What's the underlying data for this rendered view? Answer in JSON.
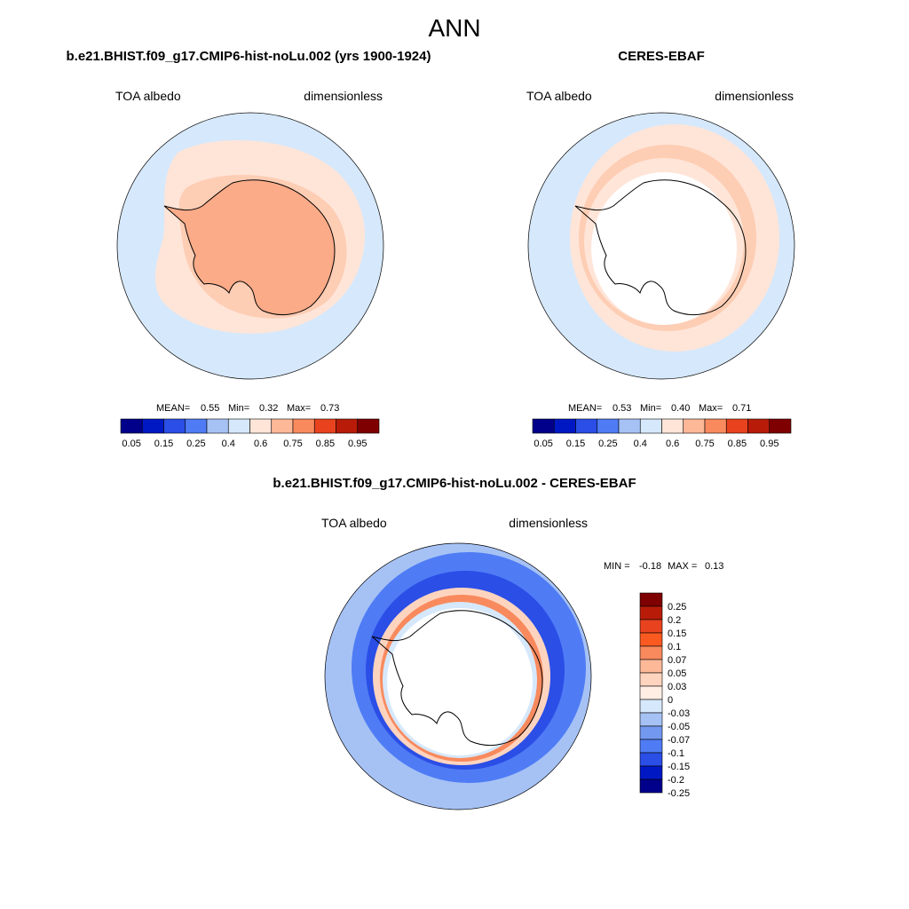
{
  "title": "ANN",
  "colors": {
    "scale_11": [
      "#00008b",
      "#0018c4",
      "#2a4ee6",
      "#4f7cf5",
      "#a6c2f5",
      "#d6e8fb",
      "#ffe5d8",
      "#fdb898",
      "#f88a5e",
      "#e8431e",
      "#b81c08",
      "#7f0000"
    ],
    "scale_14": [
      "#7f0000",
      "#b81c08",
      "#e8431e",
      "#fa5a20",
      "#f88a5e",
      "#fdb898",
      "#ffd4bf",
      "#ffeee4",
      "#d6e8fb",
      "#a6c2f5",
      "#7398f0",
      "#4f7cf5",
      "#2a4ee6",
      "#0018c4",
      "#00008b"
    ]
  },
  "chart_data": [
    {
      "type": "heatmap",
      "projection": "south-polar-stereographic",
      "title": "b.e21.BHIST.f09_g17.CMIP6-hist-noLu.002 (yrs 1900-1924)",
      "left_label": "TOA albedo",
      "right_label": "dimensionless",
      "stats": {
        "mean_label": "MEAN=",
        "mean": "0.55",
        "min_label": "Min=",
        "min": "0.32",
        "max_label": "Max=",
        "max": "0.73"
      },
      "colorbar": {
        "orientation": "horizontal",
        "tick_labels": [
          "0.05",
          "0.15",
          "0.25",
          "0.4",
          "0.6",
          "0.75",
          "0.85",
          "0.95"
        ],
        "levels": [
          0.05,
          0.1,
          0.15,
          0.2,
          0.25,
          0.3,
          0.4,
          0.5,
          0.6,
          0.7,
          0.75,
          0.8,
          0.85,
          0.9,
          0.95
        ]
      },
      "zones": [
        {
          "region": "open ocean",
          "value": 0.45
        },
        {
          "region": "sea-ice belt",
          "value": 0.6
        },
        {
          "region": "Antarctic continent",
          "value": 0.7
        }
      ]
    },
    {
      "type": "heatmap",
      "projection": "south-polar-stereographic",
      "title": "CERES-EBAF",
      "left_label": "TOA albedo",
      "right_label": "dimensionless",
      "stats": {
        "mean_label": "MEAN=",
        "mean": "0.53",
        "min_label": "Min=",
        "min": "0.40",
        "max_label": "Max=",
        "max": "0.71"
      },
      "colorbar": {
        "orientation": "horizontal",
        "tick_labels": [
          "0.05",
          "0.15",
          "0.25",
          "0.4",
          "0.6",
          "0.75",
          "0.85",
          "0.95"
        ],
        "levels": [
          0.05,
          0.1,
          0.15,
          0.2,
          0.25,
          0.3,
          0.4,
          0.5,
          0.6,
          0.7,
          0.75,
          0.8,
          0.85,
          0.9,
          0.95
        ]
      },
      "zones": [
        {
          "region": "open ocean",
          "value": 0.45
        },
        {
          "region": "sea-ice belt",
          "value": 0.6
        },
        {
          "region": "Antarctic continent",
          "value": null
        }
      ]
    },
    {
      "type": "heatmap",
      "projection": "south-polar-stereographic",
      "title": "b.e21.BHIST.f09_g17.CMIP6-hist-noLu.002 - CERES-EBAF",
      "left_label": "TOA albedo",
      "right_label": "dimensionless",
      "stats": {
        "min_label": "MIN =",
        "min": "-0.18",
        "max_label": "MAX =",
        "max": "0.13"
      },
      "colorbar": {
        "orientation": "vertical",
        "tick_labels": [
          "0.25",
          "0.2",
          "0.15",
          "0.1",
          "0.07",
          "0.05",
          "0.03",
          "0",
          "-0.03",
          "-0.05",
          "-0.07",
          "-0.1",
          "-0.15",
          "-0.2",
          "-0.25"
        ]
      },
      "zones": [
        {
          "region": "outer ocean",
          "value": -0.03
        },
        {
          "region": "storm-track band",
          "value": -0.07
        },
        {
          "region": "ice edge ring",
          "value": 0.05
        },
        {
          "region": "Antarctic continent",
          "value": null
        }
      ]
    }
  ]
}
